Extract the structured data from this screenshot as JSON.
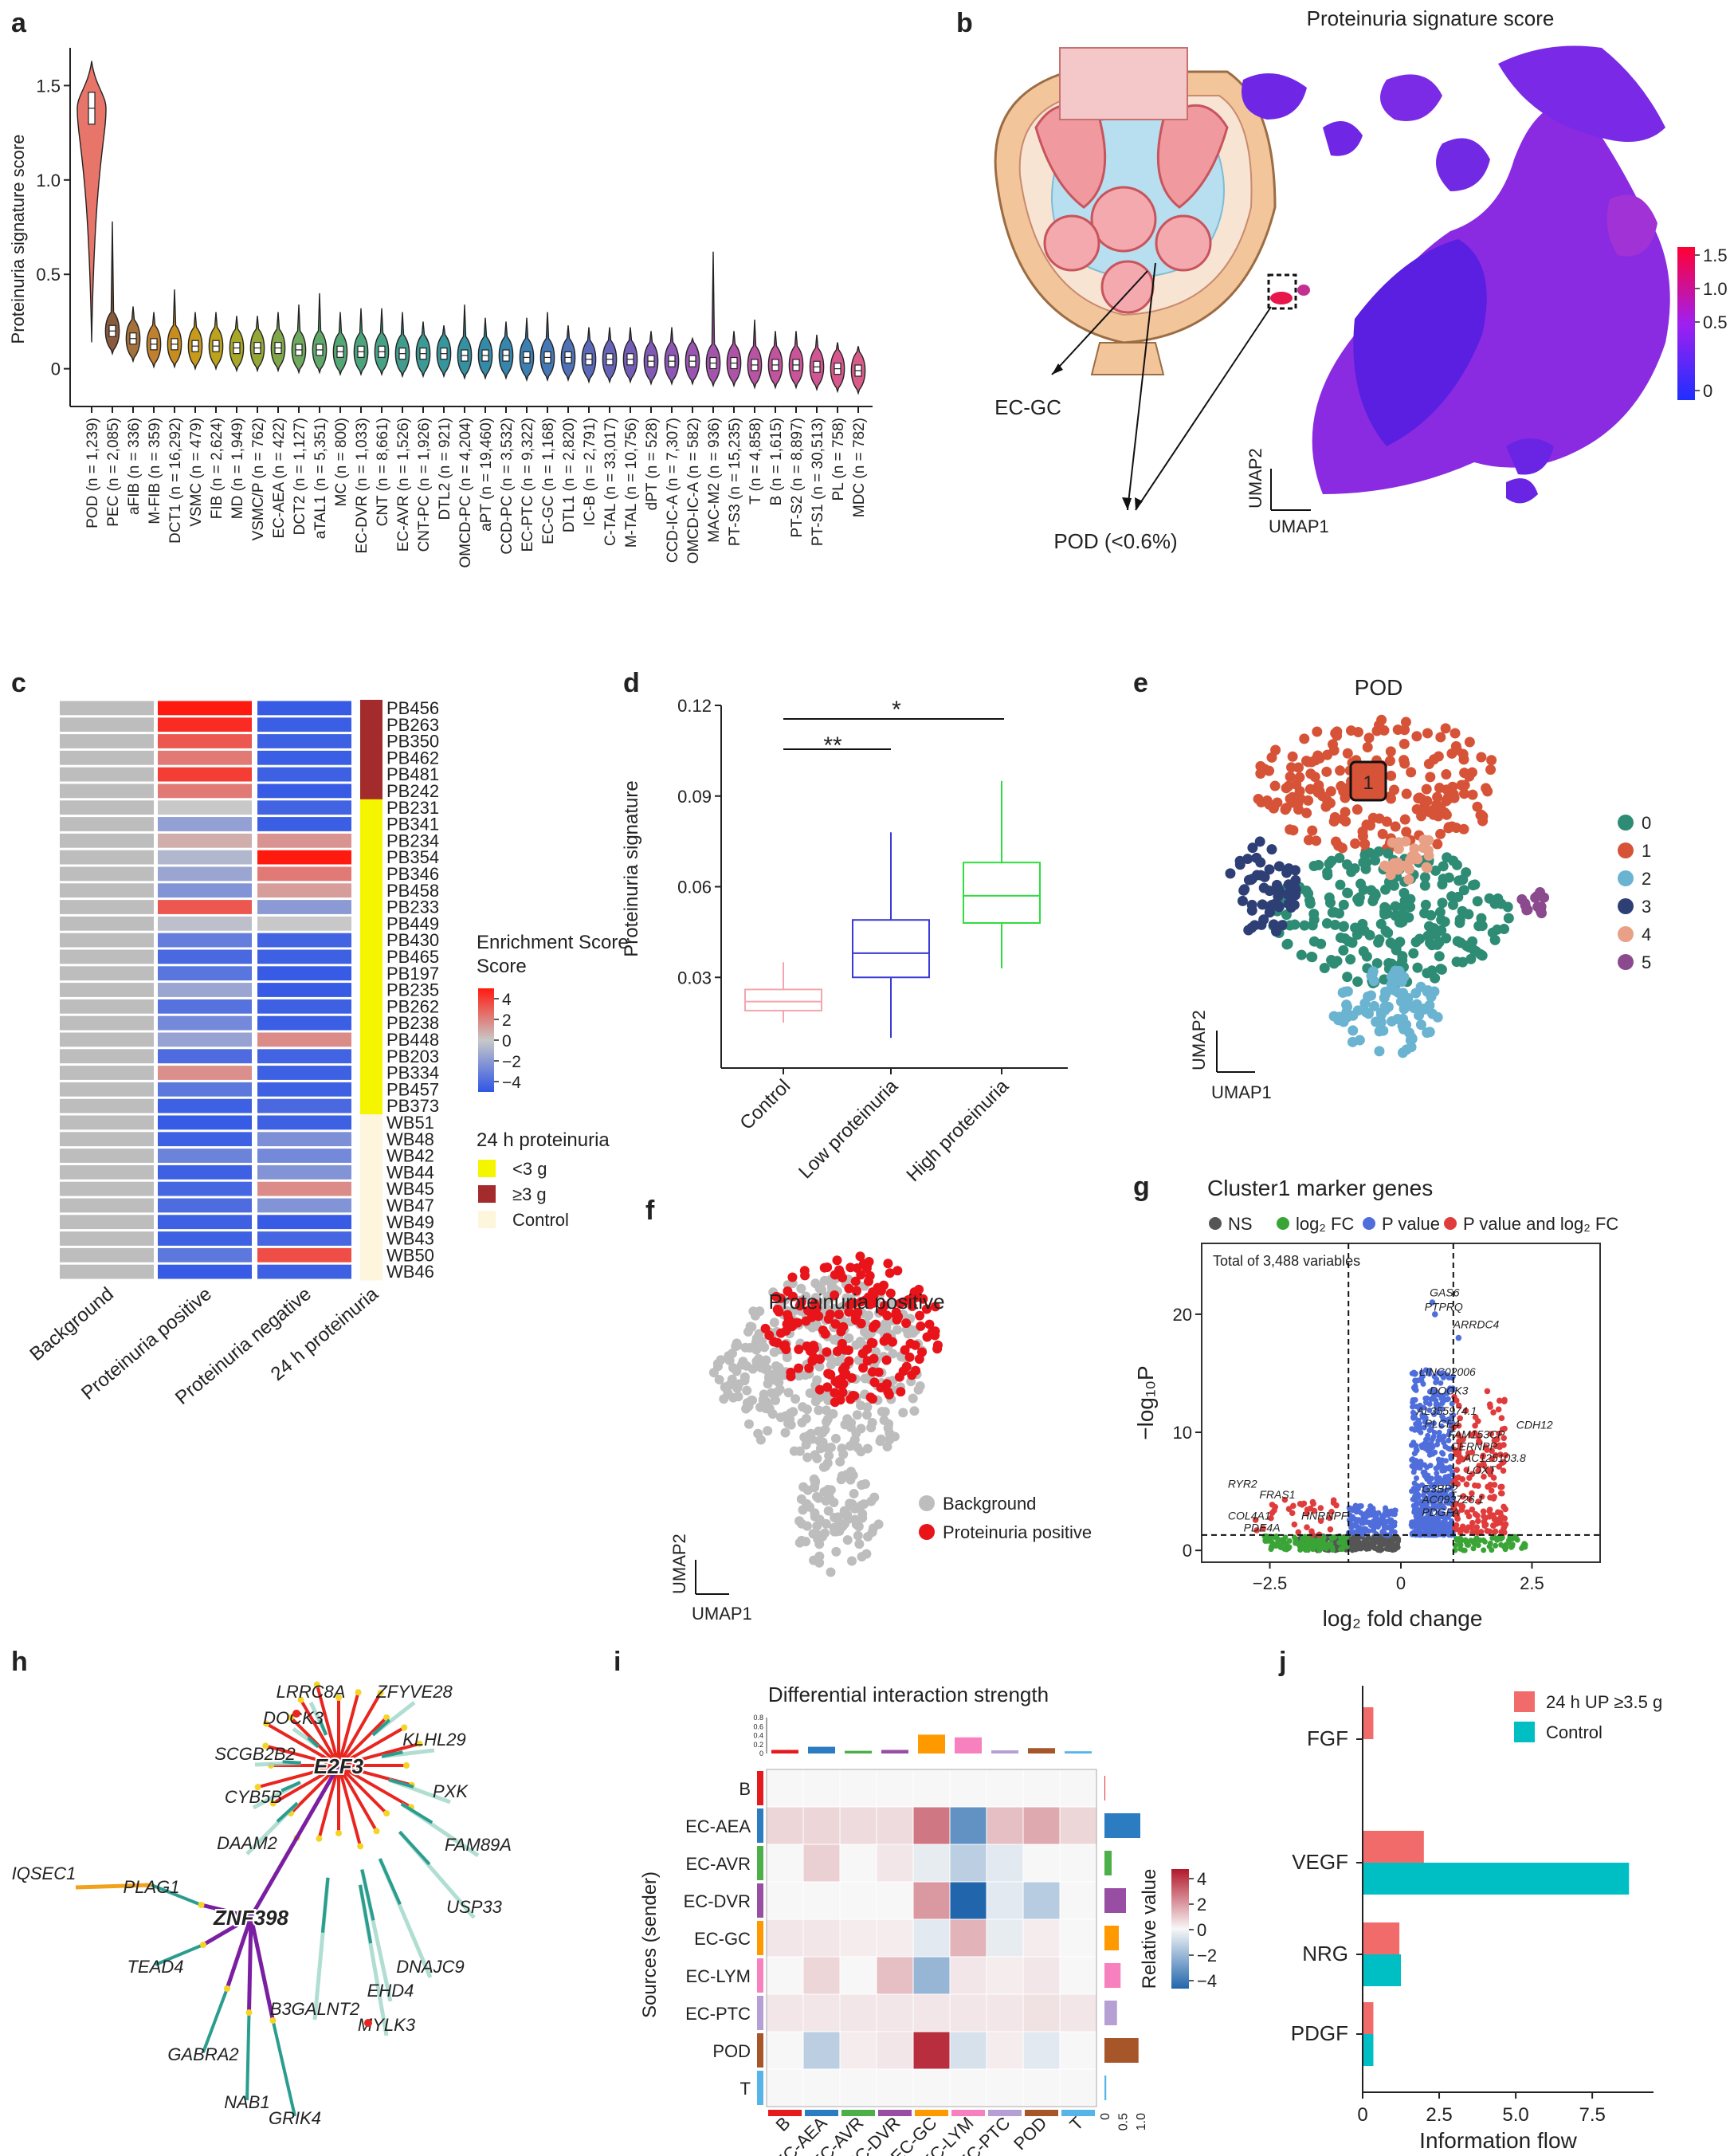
{
  "panel_labels": [
    "a",
    "b",
    "c",
    "d",
    "e",
    "f",
    "g",
    "h",
    "i",
    "j"
  ],
  "chart_data": [
    {
      "panel": "a",
      "type": "violin",
      "ylabel": "Proteinuria signature score",
      "ylim": [
        -0.2,
        1.7
      ],
      "yticks": [
        "0",
        "0.5",
        "1.0",
        "1.5"
      ],
      "categories": [
        "POD (n = 1,239)",
        "PEC (n = 2,085)",
        "aFIB (n = 336)",
        "M-FIB (n = 359)",
        "DCT1 (n = 16,292)",
        "VSMC (n = 479)",
        "FIB (n = 2,624)",
        "MD (n = 1,949)",
        "VSMC/P (n = 762)",
        "EC-AEA (n = 422)",
        "DCT2 (n = 1,127)",
        "aTAL1 (n = 5,351)",
        "MC (n = 800)",
        "EC-DVR (n = 1,033)",
        "CNT (n = 8,661)",
        "EC-AVR (n = 1,526)",
        "CNT-PC (n = 1,926)",
        "DTL2 (n = 921)",
        "OMCD-PC (n = 4,204)",
        "aPT (n = 19,460)",
        "CCD-PC (n = 3,532)",
        "EC-PTC (n = 9,322)",
        "EC-GC (n = 1,168)",
        "DTL1 (n = 2,820)",
        "IC-B (n = 2,791)",
        "C-TAL (n = 33,017)",
        "M-TAL (n = 10,756)",
        "dPT (n = 528)",
        "CCD-IC-A (n = 7,307)",
        "OMCD-IC-A (n = 582)",
        "MAC-M2 (n = 936)",
        "PT-S3 (n = 15,235)",
        "T (n = 4,858)",
        "B (n = 1,615)",
        "PT-S2 (n = 8,897)",
        "PT-S1 (n = 30,513)",
        "PL (n = 758)",
        "MDC (n = 782)"
      ],
      "medians": [
        1.38,
        0.2,
        0.16,
        0.13,
        0.13,
        0.12,
        0.12,
        0.11,
        0.11,
        0.11,
        0.1,
        0.1,
        0.09,
        0.09,
        0.09,
        0.08,
        0.08,
        0.08,
        0.07,
        0.07,
        0.07,
        0.06,
        0.06,
        0.06,
        0.05,
        0.05,
        0.05,
        0.04,
        0.04,
        0.04,
        0.03,
        0.03,
        0.02,
        0.02,
        0.02,
        0.01,
        0.0,
        -0.01
      ],
      "maxima": [
        1.63,
        0.78,
        0.33,
        0.3,
        0.42,
        0.3,
        0.3,
        0.28,
        0.28,
        0.3,
        0.34,
        0.4,
        0.3,
        0.32,
        0.32,
        0.3,
        0.25,
        0.23,
        0.34,
        0.27,
        0.25,
        0.27,
        0.3,
        0.23,
        0.22,
        0.22,
        0.22,
        0.2,
        0.22,
        0.16,
        0.62,
        0.2,
        0.26,
        0.2,
        0.2,
        0.18,
        0.14,
        0.12
      ],
      "colors": [
        "#e8756a",
        "#8a5a3c",
        "#a5713a",
        "#c0802e",
        "#c98d1f",
        "#c89a19",
        "#bda21b",
        "#a9a728",
        "#94a738",
        "#80a84a",
        "#6ea95d",
        "#5fa86a",
        "#54a674",
        "#4ca47d",
        "#46a185",
        "#409d8d",
        "#3b9a94",
        "#37969b",
        "#3591a1",
        "#358ba7",
        "#3785ad",
        "#3c7fb2",
        "#4478b6",
        "#4e71b8",
        "#5a6ab9",
        "#6763b8",
        "#745db7",
        "#815ab5",
        "#8d57b3",
        "#9955b0",
        "#a454ac",
        "#af53a8",
        "#b953a3",
        "#c2539e",
        "#ca5499",
        "#d15693",
        "#d6588d",
        "#da5b87"
      ]
    },
    {
      "panel": "b",
      "type": "umap",
      "title": "Proteinuria signature score",
      "colorbar_ticks": [
        "1.5",
        "1.0",
        "0.5",
        "0"
      ],
      "annotations": [
        "EC-GC",
        "POD (<0.6%)"
      ],
      "xlabel": "UMAP1",
      "ylabel": "UMAP2"
    },
    {
      "panel": "c",
      "type": "heatmap",
      "columns": [
        "Background",
        "Proteinuria positive",
        "Proteinuria negative",
        "24 h proteinuria"
      ],
      "rows": [
        "PB456",
        "PB263",
        "PB350",
        "PB462",
        "PB481",
        "PB242",
        "PB231",
        "PB341",
        "PB234",
        "PB354",
        "PB346",
        "PB458",
        "PB233",
        "PB449",
        "PB430",
        "PB465",
        "PB197",
        "PB235",
        "PB262",
        "PB238",
        "PB448",
        "PB203",
        "PB334",
        "PB457",
        "PB373",
        "WB51",
        "WB48",
        "WB42",
        "WB44",
        "WB45",
        "WB47",
        "WB49",
        "WB43",
        "WB50",
        "WB46"
      ],
      "positive_scores": [
        4,
        3.6,
        2.6,
        1.8,
        3.2,
        1.8,
        0,
        -1.4,
        0.6,
        -0.6,
        -1.2,
        -1.8,
        2.6,
        -0.3,
        -2.6,
        -3.3,
        -2.9,
        -1.2,
        -3.0,
        -2.2,
        -1.3,
        -3.2,
        1.3,
        -2.8,
        -3.6,
        -3.8,
        -3.6,
        -2.4,
        -3.6,
        -3.4,
        -3.2,
        -3.6,
        -3.6,
        -2.8,
        -3.8
      ],
      "negative_scores": [
        -3.8,
        -3.7,
        -3.6,
        -3.7,
        -3.6,
        -3.8,
        -3.5,
        -3.7,
        1.2,
        4,
        1.8,
        1.0,
        -1.6,
        0,
        -3.5,
        -3.6,
        -3.8,
        -3.8,
        -3.6,
        -3.7,
        1.4,
        -3.5,
        -3.6,
        -3.6,
        -3.3,
        -3.6,
        -2.0,
        -2.2,
        -1.8,
        1.4,
        -1.8,
        -3.8,
        -3.4,
        2.8,
        -3.6
      ],
      "proteinuria_groups": [
        "high",
        "high",
        "high",
        "high",
        "high",
        "high",
        "low",
        "low",
        "low",
        "low",
        "low",
        "low",
        "low",
        "low",
        "low",
        "low",
        "low",
        "low",
        "low",
        "low",
        "low",
        "low",
        "low",
        "low",
        "low",
        "control",
        "control",
        "control",
        "control",
        "control",
        "control",
        "control",
        "control",
        "control",
        "control"
      ],
      "legend_title": "Enrichment Score",
      "legend_ticks": [
        "4",
        "2",
        "0",
        "−2",
        "−4"
      ],
      "group_legend_title": "24 h proteinuria",
      "group_legend": [
        "<3 g",
        "≥3 g",
        "Control"
      ],
      "group_colors": {
        "low": "#f5f500",
        "high": "#a32b2b",
        "control": "#fdf6dc"
      }
    },
    {
      "panel": "d",
      "type": "box",
      "ylabel": "Proteinuria signature",
      "ylim": [
        0.0,
        0.12
      ],
      "yticks": [
        "0.03",
        "0.06",
        "0.09",
        "0.12"
      ],
      "categories": [
        "Control",
        "Low proteinuria",
        "High proteinuria"
      ],
      "series": [
        {
          "name": "Control",
          "q1": 0.019,
          "median": 0.022,
          "q3": 0.026,
          "min": 0.015,
          "max": 0.035,
          "color": "#f4a6ae"
        },
        {
          "name": "Low proteinuria",
          "q1": 0.03,
          "median": 0.038,
          "q3": 0.049,
          "min": 0.01,
          "max": 0.078,
          "color": "#3a3ad6"
        },
        {
          "name": "High proteinuria",
          "q1": 0.048,
          "median": 0.057,
          "q3": 0.068,
          "min": 0.033,
          "max": 0.095,
          "color": "#2fdd3e"
        }
      ],
      "significance": [
        "**",
        "*"
      ]
    },
    {
      "panel": "e",
      "type": "scatter",
      "title": "POD",
      "clusters": [
        "0",
        "1",
        "2",
        "3",
        "4",
        "5"
      ],
      "cluster_colors": [
        "#2e8b74",
        "#d65338",
        "#6ab3d1",
        "#2e3f75",
        "#e8a186",
        "#8c4a8e"
      ],
      "highlight_label": "1",
      "xlabel": "UMAP1",
      "ylabel": "UMAP2"
    },
    {
      "panel": "f",
      "type": "scatter",
      "title": "Proteinuria positive",
      "legend": [
        "Background",
        "Proteinuria positive"
      ],
      "colors": [
        "#bdbdbd",
        "#e8141a"
      ],
      "xlabel": "UMAP1",
      "ylabel": "UMAP2"
    },
    {
      "panel": "g",
      "type": "volcano",
      "title": "Cluster1 marker genes",
      "legend": [
        "NS",
        "log₂ FC",
        "P value",
        "P value and log₂ FC"
      ],
      "legend_colors": [
        "#555555",
        "#3aa536",
        "#4f6edc",
        "#e03c3c"
      ],
      "subtitle": "Total of 3,488 variables",
      "xlabel": "log₂ fold change",
      "ylabel": "−log₁₀P",
      "xticks": [
        "−2.5",
        "0",
        "2.5"
      ],
      "yticks": [
        "0",
        "10",
        "20"
      ],
      "xlim": [
        -3.8,
        3.8
      ],
      "ylim": [
        -1,
        26
      ],
      "genes": [
        "GAS6",
        "PTPRQ",
        "ARRDC4",
        "LINC02006",
        "DOCK3",
        "AL355974.1",
        "PLCE4",
        "FAM153CP",
        "CDH12",
        "CERNPP",
        "AC125103.8",
        "LOXT",
        "G3BP2",
        "AC093726.1",
        "PDGFA",
        "RYR2",
        "FRAS1",
        "HNRNPF",
        "COL4A1",
        "PDE4A"
      ]
    },
    {
      "panel": "h",
      "type": "network",
      "hubs": [
        "E2F3",
        "ZNF398"
      ],
      "genes": [
        "LRRC8A",
        "ZFYVE28",
        "DOCK3",
        "KLHL29",
        "SCGB2B2",
        "CYB5B",
        "PXK",
        "FAM89A",
        "DAAM2",
        "USP33",
        "IQSEC1",
        "PLAG1",
        "DNAJC9",
        "TEAD4",
        "EHD4",
        "B3GALNT2",
        "MYLK3",
        "GABRA2",
        "NAB1",
        "GRIK4"
      ]
    },
    {
      "panel": "i",
      "type": "heatmap",
      "title": "Differential interaction strength",
      "ylabel": "Sources (sender)",
      "rows": [
        "B",
        "EC-AEA",
        "EC-AVR",
        "EC-DVR",
        "EC-GC",
        "EC-LYM",
        "EC-PTC",
        "POD",
        "T"
      ],
      "cols": [
        "B",
        "EC-AEA",
        "EC-AVR",
        "EC-DVR",
        "EC-GC",
        "EC-LYM",
        "EC-PTC",
        "POD",
        "T"
      ],
      "category_colors": [
        "#e41a1c",
        "#2b7cc0",
        "#4daf4a",
        "#984ea3",
        "#ff9900",
        "#f781bf",
        "#b59fd4",
        "#a65628",
        "#56b4e9"
      ],
      "values": [
        [
          0,
          0,
          0,
          0,
          0,
          0,
          0,
          0,
          0
        ],
        [
          0.6,
          0.6,
          0.5,
          0.5,
          2.3,
          -2.8,
          1.0,
          1.4,
          0.6
        ],
        [
          0,
          0.7,
          0,
          0.3,
          -0.3,
          -1.1,
          -0.4,
          0,
          0
        ],
        [
          0,
          0,
          0,
          0,
          1.7,
          -4.0,
          -0.4,
          -1.2,
          0
        ],
        [
          0.3,
          0.3,
          0.2,
          0.2,
          -0.4,
          1.2,
          -0.3,
          0.2,
          0
        ],
        [
          0,
          0.6,
          0,
          1.0,
          -1.8,
          0.3,
          0.2,
          0.3,
          0
        ],
        [
          0.3,
          0.3,
          0.3,
          0.3,
          0.3,
          0.3,
          0.3,
          0.4,
          0.3
        ],
        [
          0,
          -1.1,
          0.2,
          0.3,
          3.6,
          -0.6,
          0.2,
          -0.4,
          0
        ],
        [
          0,
          0,
          0,
          0,
          0,
          0,
          0,
          0,
          0
        ]
      ],
      "top_bars": [
        0.08,
        0.15,
        0.06,
        0.08,
        0.42,
        0.36,
        0.07,
        0.12,
        0.05
      ],
      "top_ticks": [
        "0",
        "0.2",
        "0.4",
        "0.6",
        "0.8"
      ],
      "right_bars": [
        0.02,
        1.0,
        0.2,
        0.6,
        0.4,
        0.45,
        0.35,
        0.95,
        0.05
      ],
      "right_ticks": [
        "0",
        "0.5",
        "1.0"
      ],
      "legend_title": "Relative value",
      "legend_ticks": [
        "4",
        "2",
        "0",
        "−2",
        "−4"
      ]
    },
    {
      "panel": "j",
      "type": "bar",
      "orientation": "horizontal",
      "categories": [
        "FGF",
        "VEGF",
        "NRG",
        "PDGF"
      ],
      "series": [
        {
          "name": "24 h UP ≥3.5 g",
          "values": [
            0.35,
            2.0,
            1.2,
            0.35
          ],
          "color": "#f26b6b"
        },
        {
          "name": "Control",
          "values": [
            0.0,
            8.7,
            1.25,
            0.35
          ],
          "color": "#00bfc4"
        }
      ],
      "xlabel": "Information flow",
      "xticks": [
        "0",
        "2.5",
        "5.0",
        "7.5"
      ],
      "xlim": [
        0,
        9.5
      ],
      "highlight_category_color": "#f26b6b"
    }
  ]
}
